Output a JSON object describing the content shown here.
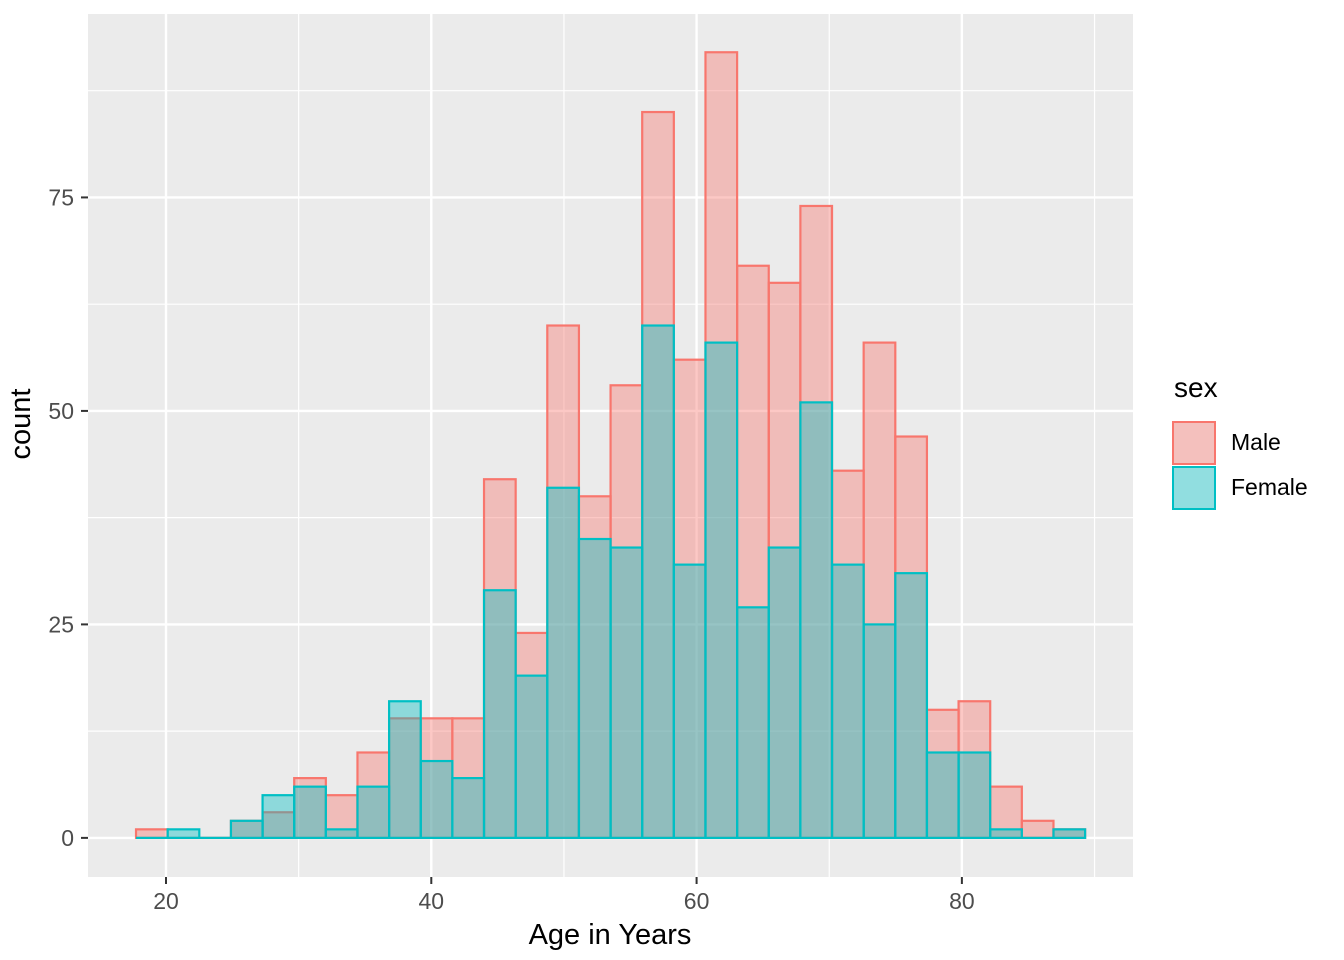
{
  "chart_data": {
    "type": "histogram",
    "title": "",
    "xlabel": "Age in Years",
    "ylabel": "count",
    "legend_title": "sex",
    "legend_position": "right",
    "bin_start": 17.74,
    "bin_width": 2.385,
    "xlim": [
      14.12,
      92.9
    ],
    "ylim": [
      -4.58,
      96.48
    ],
    "xticks": [
      20,
      40,
      60,
      80
    ],
    "yticks": [
      0,
      25,
      50,
      75
    ],
    "x_minor": [
      30,
      50,
      70,
      90
    ],
    "y_minor": [
      12.5,
      37.5,
      62.5,
      87.5
    ],
    "grid": true,
    "panel_bg": "#EBEBEB",
    "grid_color": "#FFFFFF",
    "tick_color": "#333333",
    "tick_label_color": "#4D4D4D",
    "axis_title_color": "#000000",
    "series": [
      {
        "name": "Male",
        "stroke": "#F8766D",
        "fill": "rgba(248,118,109,0.4)",
        "values": [
          1,
          0,
          0,
          2,
          3,
          7,
          5,
          10,
          14,
          14,
          14,
          42,
          24,
          60,
          40,
          53,
          85,
          56,
          92,
          67,
          65,
          74,
          43,
          58,
          47,
          15,
          16,
          6,
          2,
          1
        ]
      },
      {
        "name": "Female",
        "stroke": "#00BFC4",
        "fill": "rgba(0,191,196,0.4)",
        "values": [
          0,
          1,
          0,
          2,
          5,
          6,
          1,
          6,
          16,
          9,
          7,
          29,
          19,
          41,
          35,
          34,
          60,
          32,
          58,
          27,
          34,
          51,
          32,
          25,
          31,
          10,
          10,
          1,
          0,
          1
        ]
      }
    ]
  }
}
